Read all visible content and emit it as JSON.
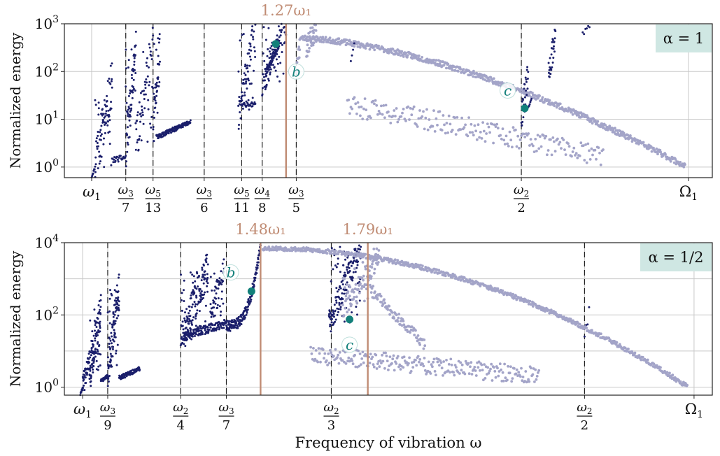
{
  "colors": {
    "branch_dark": "#1b1f6b",
    "branch_light": "#a3a4c8",
    "marker": "#12807a",
    "resonance": "#c08c74",
    "grid": "#c8c8c8",
    "badge_bg": "#cfe7e3"
  },
  "chart_data": [
    {
      "type": "scatter",
      "scale_y": "log",
      "ylabel": "Normalized energy",
      "badge": "α = 1",
      "ylim": [
        0.6,
        1000
      ],
      "yticks": [
        {
          "value": 1,
          "base": "10",
          "exp": "0"
        },
        {
          "value": 10,
          "base": "10",
          "exp": "1"
        },
        {
          "value": 100,
          "base": "10",
          "exp": "2"
        },
        {
          "value": 1000,
          "base": "10",
          "exp": "3"
        }
      ],
      "xticks": [
        {
          "x": 1.0,
          "kind": "sym",
          "sym": "ω",
          "sub": "1"
        },
        {
          "x": 1.1,
          "kind": "frac",
          "num_sym": "ω",
          "num_sub": "3",
          "den": "7"
        },
        {
          "x": 1.18,
          "kind": "frac",
          "num_sym": "ω",
          "num_sub": "5",
          "den": "13"
        },
        {
          "x": 1.33,
          "kind": "frac",
          "num_sym": "ω",
          "num_sub": "3",
          "den": "6"
        },
        {
          "x": 1.44,
          "kind": "frac",
          "num_sym": "ω",
          "num_sub": "5",
          "den": "11"
        },
        {
          "x": 1.5,
          "kind": "frac",
          "num_sym": "ω",
          "num_sub": "4",
          "den": "8"
        },
        {
          "x": 1.6,
          "kind": "frac",
          "num_sym": "ω",
          "num_sub": "3",
          "den": "5"
        },
        {
          "x": 2.26,
          "kind": "frac",
          "num_sym": "ω",
          "num_sub": "2",
          "den": "2"
        },
        {
          "x": 2.75,
          "kind": "sym",
          "sym": "Ω",
          "sub": "1"
        }
      ],
      "dashed_x": [
        1.1,
        1.18,
        1.33,
        1.44,
        1.5,
        1.6,
        2.26
      ],
      "resonance": [
        {
          "x": 1.57,
          "label": "1.27ω₁"
        }
      ],
      "markers": [
        {
          "label": "b",
          "x": 1.54,
          "y": 380,
          "label_x": 1.6,
          "label_y": 100
        },
        {
          "label": "c",
          "x": 2.27,
          "y": 17,
          "label_x": 2.22,
          "label_y": 40
        }
      ],
      "series": [
        {
          "branch": "dark",
          "seed": 11,
          "segments": [
            {
              "x0": 1.0,
              "x1": 1.01,
              "y0": 0.62,
              "y1": 1.0,
              "n": 8,
              "spread": 0.02
            },
            {
              "x0": 1.01,
              "x1": 1.06,
              "y0": 1.0,
              "y1": 60,
              "n": 90,
              "spread": 0.5,
              "spike": 0.35
            },
            {
              "x0": 1.06,
              "x1": 1.1,
              "y0": 1.4,
              "y1": 1.6,
              "n": 25,
              "spread": 0.06
            },
            {
              "x0": 1.1,
              "x1": 1.13,
              "y0": 2.4,
              "y1": 300,
              "n": 70,
              "spread": 0.45,
              "spike": 0.3
            },
            {
              "x0": 1.13,
              "x1": 1.18,
              "y0": 3.0,
              "y1": 400,
              "n": 60,
              "spread": 0.45,
              "spike": 0.3
            },
            {
              "x0": 1.18,
              "x1": 1.2,
              "y0": 4.0,
              "y1": 500,
              "n": 45,
              "spread": 0.4,
              "spike": 0.3
            },
            {
              "x0": 1.19,
              "x1": 1.29,
              "y0": 4.2,
              "y1": 8.8,
              "n": 120,
              "spread": 0.05
            },
            {
              "x0": 1.43,
              "x1": 1.48,
              "y0": 12,
              "y1": 800,
              "n": 80,
              "spread": 0.4,
              "spike": 0.3
            },
            {
              "x0": 1.44,
              "x1": 1.48,
              "y0": 19,
              "y1": 22,
              "n": 20,
              "spread": 0.04
            },
            {
              "x0": 1.5,
              "x1": 1.57,
              "y0": 60,
              "y1": 900,
              "n": 90,
              "spread": 0.35,
              "spike": 0.25
            },
            {
              "x0": 1.51,
              "x1": 1.55,
              "y0": 90,
              "y1": 400,
              "n": 70,
              "spread": 0.08
            }
          ]
        },
        {
          "branch": "light",
          "seed": 23,
          "segments": [
            {
              "x0": 1.61,
              "x1": 2.74,
              "y0": 500,
              "y1": 1.05,
              "n": 650,
              "spread": 0.06,
              "curve": 1.6
            },
            {
              "x0": 1.75,
              "x1": 2.5,
              "y0": 18,
              "y1": 1.6,
              "n": 220,
              "spread": 0.22,
              "curve": 1.2
            },
            {
              "x0": 1.63,
              "x1": 1.66,
              "y0": 300,
              "y1": 900,
              "n": 30,
              "spread": 0.25
            },
            {
              "x0": 1.6,
              "x1": 1.61,
              "y0": 80,
              "y1": 300,
              "n": 10,
              "spread": 0.2
            }
          ]
        },
        {
          "branch": "dark",
          "seed": 31,
          "segments": [
            {
              "x0": 2.26,
              "x1": 2.28,
              "y0": 12,
              "y1": 80,
              "n": 25,
              "spread": 0.3
            },
            {
              "x0": 2.34,
              "x1": 2.36,
              "y0": 80,
              "y1": 600,
              "n": 30,
              "spread": 0.3
            },
            {
              "x0": 2.27,
              "x1": 2.29,
              "y0": 15,
              "y1": 25,
              "n": 12,
              "spread": 0.05
            },
            {
              "x0": 2.44,
              "x1": 2.46,
              "y0": 600,
              "y1": 900,
              "n": 6,
              "spread": 0.05
            },
            {
              "x0": 1.76,
              "x1": 1.77,
              "y0": 150,
              "y1": 400,
              "n": 4,
              "spread": 0.05
            }
          ]
        }
      ]
    },
    {
      "type": "scatter",
      "scale_y": "log",
      "ylabel": "Normalized energy",
      "xlabel": "Frequency of vibration ω",
      "badge": "α = 1/2",
      "ylim": [
        0.6,
        10000
      ],
      "yticks": [
        {
          "value": 1,
          "base": "10",
          "exp": "0"
        },
        {
          "value": 100,
          "base": "10",
          "exp": "2"
        },
        {
          "value": 10000,
          "base": "10",
          "exp": "4"
        }
      ],
      "xticks": [
        {
          "x": 1.0,
          "kind": "sym",
          "sym": "ω",
          "sub": "1"
        },
        {
          "x": 1.11,
          "kind": "frac",
          "num_sym": "ω",
          "num_sub": "3",
          "den": "9"
        },
        {
          "x": 1.43,
          "kind": "frac",
          "num_sym": "ω",
          "num_sub": "2",
          "den": "4"
        },
        {
          "x": 1.63,
          "kind": "frac",
          "num_sym": "ω",
          "num_sub": "3",
          "den": "7"
        },
        {
          "x": 2.09,
          "kind": "frac",
          "num_sym": "ω",
          "num_sub": "2",
          "den": "3"
        },
        {
          "x": 3.2,
          "kind": "frac",
          "num_sym": "ω",
          "num_sub": "2",
          "den": "2"
        },
        {
          "x": 3.68,
          "kind": "sym",
          "sym": "Ω",
          "sub": "1"
        }
      ],
      "dashed_x": [
        1.11,
        1.43,
        1.63,
        2.09,
        3.2
      ],
      "resonance": [
        {
          "x": 1.78,
          "label": "1.48ω₁"
        },
        {
          "x": 2.25,
          "label": "1.79ω₁"
        }
      ],
      "markers": [
        {
          "label": "b",
          "x": 1.74,
          "y": 450,
          "label_x": 1.65,
          "label_y": 1500
        },
        {
          "label": "c",
          "x": 2.17,
          "y": 75,
          "label_x": 2.17,
          "label_y": 15
        }
      ],
      "series": [
        {
          "branch": "dark",
          "seed": 41,
          "segments": [
            {
              "x0": 0.99,
              "x1": 1.0,
              "y0": 0.62,
              "y1": 1.0,
              "n": 8,
              "spread": 0.02
            },
            {
              "x0": 1.0,
              "x1": 1.03,
              "y0": 1.0,
              "y1": 6,
              "n": 40,
              "spread": 0.3
            },
            {
              "x0": 1.03,
              "x1": 1.08,
              "y0": 2.0,
              "y1": 150,
              "n": 110,
              "spread": 0.5,
              "spike": 0.35
            },
            {
              "x0": 1.08,
              "x1": 1.11,
              "y0": 1.5,
              "y1": 2.0,
              "n": 25,
              "spread": 0.05
            },
            {
              "x0": 1.11,
              "x1": 1.16,
              "y0": 3.0,
              "y1": 500,
              "n": 110,
              "spread": 0.55,
              "spike": 0.35
            },
            {
              "x0": 1.16,
              "x1": 1.25,
              "y0": 1.8,
              "y1": 3.2,
              "n": 90,
              "spread": 0.06
            },
            {
              "x0": 1.43,
              "x1": 1.55,
              "y0": 20,
              "y1": 2000,
              "n": 170,
              "spread": 0.5,
              "spike": 0.35
            },
            {
              "x0": 1.44,
              "x1": 1.63,
              "y0": 25,
              "y1": 60,
              "n": 140,
              "spread": 0.12
            },
            {
              "x0": 1.63,
              "x1": 1.78,
              "y0": 50,
              "y1": 9000,
              "n": 160,
              "spread": 0.15,
              "curve": 3.0
            },
            {
              "x0": 1.56,
              "x1": 1.62,
              "y0": 80,
              "y1": 1500,
              "n": 60,
              "spread": 0.4,
              "spike": 0.3
            },
            {
              "x0": 2.08,
              "x1": 2.22,
              "y0": 60,
              "y1": 8000,
              "n": 170,
              "spread": 0.4,
              "spike": 0.3
            },
            {
              "x0": 3.2,
              "x1": 3.22,
              "y0": 20,
              "y1": 120,
              "n": 4,
              "spread": 0.2
            }
          ]
        },
        {
          "branch": "light",
          "seed": 53,
          "segments": [
            {
              "x0": 1.79,
              "x1": 3.65,
              "y0": 7000,
              "y1": 1.05,
              "n": 700,
              "spread": 0.06,
              "curve": 2.0
            },
            {
              "x0": 2.0,
              "x1": 3.0,
              "y0": 8,
              "y1": 2.0,
              "n": 260,
              "spread": 0.25,
              "curve": 1.0
            },
            {
              "x0": 2.14,
              "x1": 2.3,
              "y0": 150,
              "y1": 5000,
              "n": 90,
              "spread": 0.35,
              "spike": 0.3
            },
            {
              "x0": 2.26,
              "x1": 2.5,
              "y0": 500,
              "y1": 15,
              "n": 90,
              "spread": 0.15
            }
          ]
        }
      ]
    }
  ]
}
